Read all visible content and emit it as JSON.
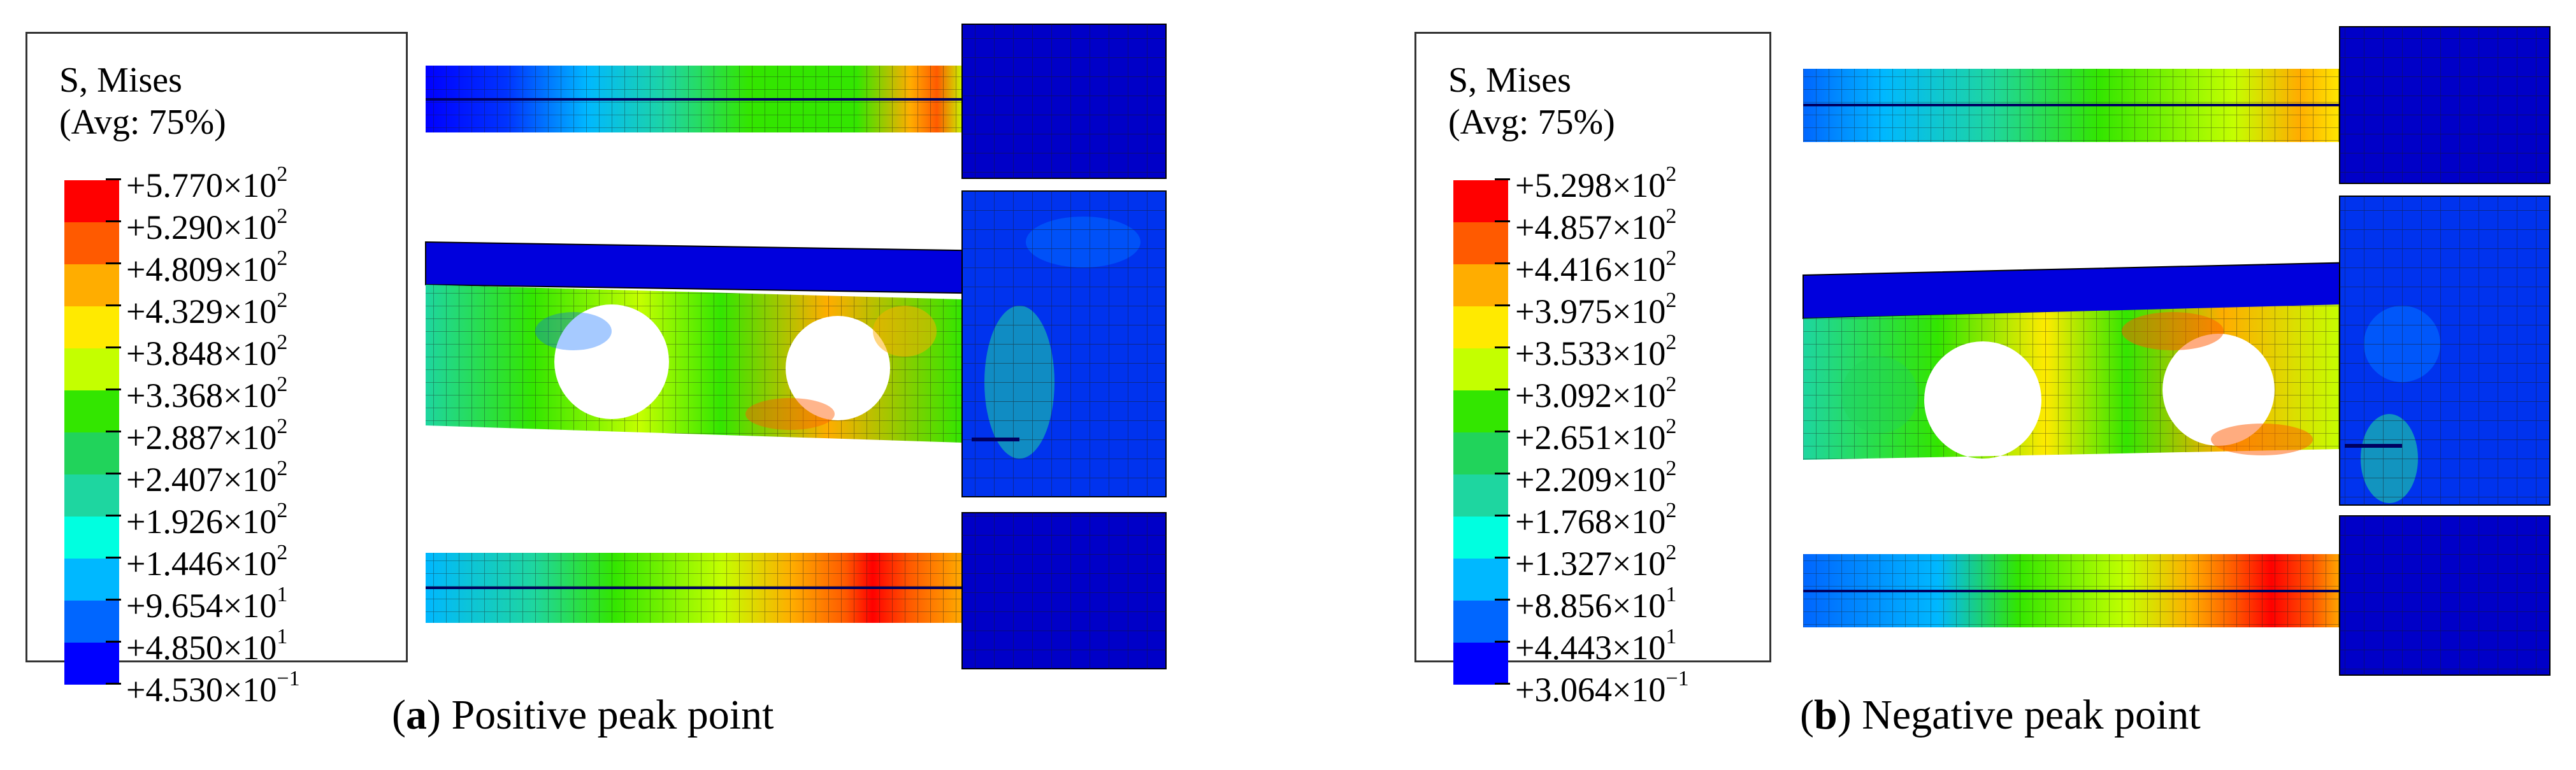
{
  "colors": {
    "band": [
      "#ff0000",
      "#ff5a00",
      "#ffad00",
      "#ffea00",
      "#c4ff00",
      "#33e600",
      "#21d35b",
      "#1ed6a0",
      "#00ffe0",
      "#00b8ff",
      "#0066ff",
      "#0000ff"
    ],
    "dark_blue": "#0000c8",
    "mesh": "#1a1a1a"
  },
  "panels": [
    {
      "legend": {
        "title": "S, Mises",
        "subtitle": "(Avg: 75%)",
        "values": [
          {
            "mantissa": "+5.770×10",
            "exp": "2"
          },
          {
            "mantissa": "+5.290×10",
            "exp": "2"
          },
          {
            "mantissa": "+4.809×10",
            "exp": "2"
          },
          {
            "mantissa": "+4.329×10",
            "exp": "2"
          },
          {
            "mantissa": "+3.848×10",
            "exp": "2"
          },
          {
            "mantissa": "+3.368×10",
            "exp": "2"
          },
          {
            "mantissa": "+2.887×10",
            "exp": "2"
          },
          {
            "mantissa": "+2.407×10",
            "exp": "2"
          },
          {
            "mantissa": "+1.926×10",
            "exp": "2"
          },
          {
            "mantissa": "+1.446×10",
            "exp": "2"
          },
          {
            "mantissa": "+9.654×10",
            "exp": "1"
          },
          {
            "mantissa": "+4.850×10",
            "exp": "1"
          },
          {
            "mantissa": "+4.530×10",
            "exp": "−1"
          }
        ]
      },
      "caption": {
        "letter": "a",
        "text": " Positive peak point"
      }
    },
    {
      "legend": {
        "title": "S, Mises",
        "subtitle": "(Avg: 75%)",
        "values": [
          {
            "mantissa": "+5.298×10",
            "exp": "2"
          },
          {
            "mantissa": "+4.857×10",
            "exp": "2"
          },
          {
            "mantissa": "+4.416×10",
            "exp": "2"
          },
          {
            "mantissa": "+3.975×10",
            "exp": "2"
          },
          {
            "mantissa": "+3.533×10",
            "exp": "2"
          },
          {
            "mantissa": "+3.092×10",
            "exp": "2"
          },
          {
            "mantissa": "+2.651×10",
            "exp": "2"
          },
          {
            "mantissa": "+2.209×10",
            "exp": "2"
          },
          {
            "mantissa": "+1.768×10",
            "exp": "2"
          },
          {
            "mantissa": "+1.327×10",
            "exp": "2"
          },
          {
            "mantissa": "+8.856×10",
            "exp": "1"
          },
          {
            "mantissa": "+4.443×10",
            "exp": "1"
          },
          {
            "mantissa": "+3.064×10",
            "exp": "−1"
          }
        ]
      },
      "caption": {
        "letter": "b",
        "text": " Negative peak point"
      }
    }
  ]
}
